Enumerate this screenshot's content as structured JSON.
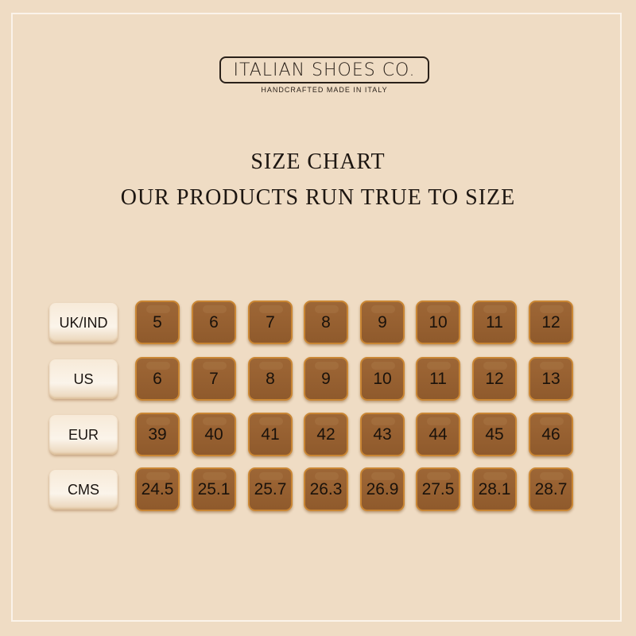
{
  "brand": {
    "name": "ITALIAN SHOES CO.",
    "tagline": "HANDCRAFTED MADE IN ITALY"
  },
  "title": "SIZE CHART",
  "subtitle": "OUR PRODUCTS RUN TRUE TO SIZE",
  "rows": [
    {
      "label": "UK/IND",
      "sizes": [
        "5",
        "6",
        "7",
        "8",
        "9",
        "10",
        "11",
        "12"
      ]
    },
    {
      "label": "US",
      "sizes": [
        "6",
        "7",
        "8",
        "9",
        "10",
        "11",
        "12",
        "13"
      ]
    },
    {
      "label": "EUR",
      "sizes": [
        "39",
        "40",
        "41",
        "42",
        "43",
        "44",
        "45",
        "46"
      ]
    },
    {
      "label": "CMS",
      "sizes": [
        "24.5",
        "25.1",
        "25.7",
        "26.3",
        "26.9",
        "27.5",
        "28.1",
        "28.7"
      ]
    }
  ],
  "colors": {
    "background": "#efdcc4",
    "cell": "#9a6333",
    "cell_border": "#c98634"
  }
}
